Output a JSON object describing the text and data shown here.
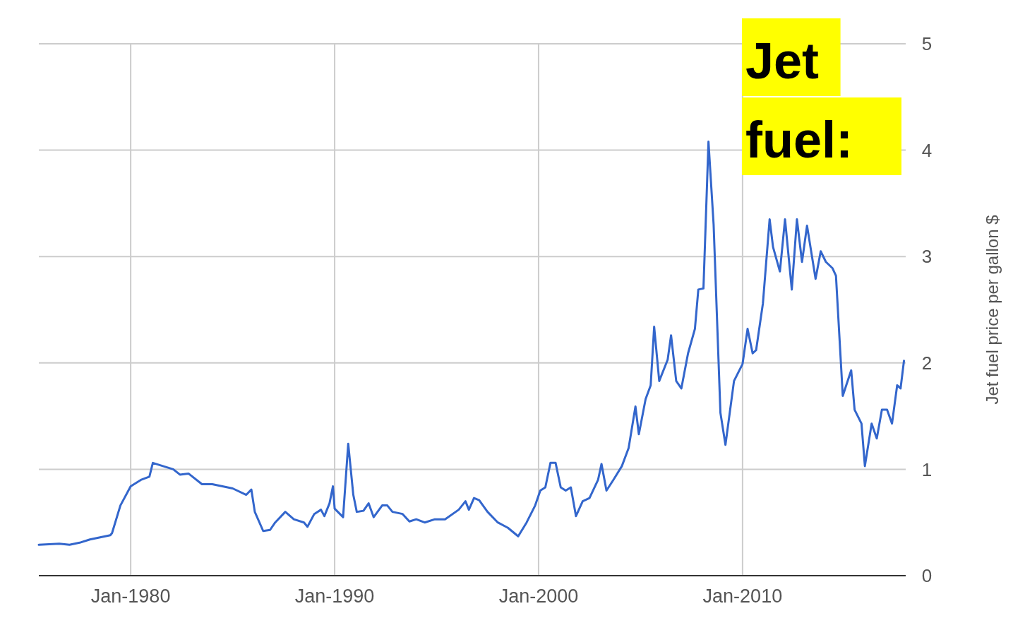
{
  "chart_data": {
    "type": "line",
    "ylabel": "Jet fuel price per gallon $",
    "annotations": [
      "Jet fuel:"
    ],
    "x": [
      "1975-07",
      "1976-07",
      "1977-01",
      "1977-07",
      "1978-01",
      "1979-01",
      "1979-02",
      "1979-07",
      "1980-01",
      "1980-07",
      "1980-12",
      "1981-02",
      "1981-08",
      "1982-02",
      "1982-06",
      "1982-11",
      "1983-07",
      "1984-01",
      "1985-01",
      "1985-09",
      "1985-12",
      "1986-02",
      "1986-07",
      "1986-11",
      "1987-02",
      "1987-08",
      "1988-01",
      "1988-07",
      "1988-09",
      "1989-01",
      "1989-05",
      "1989-07",
      "1989-10",
      "1989-12",
      "1990-01",
      "1990-06",
      "1990-09",
      "1990-12",
      "1991-02",
      "1991-06",
      "1991-09",
      "1991-12",
      "1992-05",
      "1992-08",
      "1992-11",
      "1993-05",
      "1993-09",
      "1994-01",
      "1994-06",
      "1994-12",
      "1995-06",
      "1996-02",
      "1996-06",
      "1996-08",
      "1996-11",
      "1997-02",
      "1997-07",
      "1998-01",
      "1998-07",
      "1999-01",
      "1999-06",
      "1999-11",
      "2000-02",
      "2000-05",
      "2000-08",
      "2000-11",
      "2001-02",
      "2001-05",
      "2001-08",
      "2001-11",
      "2002-03",
      "2002-07",
      "2002-12",
      "2003-02",
      "2003-05",
      "2003-09",
      "2004-02",
      "2004-06",
      "2004-10",
      "2004-12",
      "2005-04",
      "2005-07",
      "2005-09",
      "2005-12",
      "2006-05",
      "2006-07",
      "2006-10",
      "2007-01",
      "2007-05",
      "2007-09",
      "2007-11",
      "2008-02",
      "2008-05",
      "2008-08",
      "2008-12",
      "2009-03",
      "2009-08",
      "2010-01",
      "2010-04",
      "2010-07",
      "2010-09",
      "2011-01",
      "2011-05",
      "2011-07",
      "2011-11",
      "2012-02",
      "2012-06",
      "2012-09",
      "2012-12",
      "2013-03",
      "2013-08",
      "2013-11",
      "2014-02",
      "2014-06",
      "2014-08",
      "2014-12",
      "2015-02",
      "2015-05",
      "2015-07",
      "2015-11",
      "2016-01",
      "2016-05",
      "2016-08",
      "2016-11",
      "2017-02",
      "2017-05",
      "2017-08",
      "2017-10",
      "2017-12"
    ],
    "series": [
      {
        "color": "#3366cc",
        "values": [
          0.29,
          0.3,
          0.29,
          0.31,
          0.34,
          0.38,
          0.4,
          0.66,
          0.84,
          0.9,
          0.93,
          1.06,
          1.03,
          1.0,
          0.95,
          0.96,
          0.86,
          0.86,
          0.82,
          0.76,
          0.81,
          0.6,
          0.42,
          0.43,
          0.5,
          0.6,
          0.53,
          0.5,
          0.46,
          0.58,
          0.62,
          0.56,
          0.68,
          0.84,
          0.63,
          0.55,
          1.24,
          0.76,
          0.6,
          0.61,
          0.68,
          0.55,
          0.66,
          0.66,
          0.6,
          0.58,
          0.51,
          0.53,
          0.5,
          0.53,
          0.53,
          0.62,
          0.7,
          0.62,
          0.73,
          0.71,
          0.6,
          0.5,
          0.45,
          0.37,
          0.5,
          0.66,
          0.8,
          0.83,
          1.06,
          1.06,
          0.83,
          0.8,
          0.83,
          0.56,
          0.7,
          0.73,
          0.9,
          1.05,
          0.8,
          0.9,
          1.03,
          1.2,
          1.59,
          1.33,
          1.66,
          1.79,
          2.34,
          1.83,
          2.03,
          2.26,
          1.83,
          1.76,
          2.09,
          2.32,
          2.69,
          2.7,
          4.08,
          3.3,
          1.53,
          1.23,
          1.83,
          1.99,
          2.32,
          2.09,
          2.12,
          2.56,
          3.35,
          3.09,
          2.86,
          3.35,
          2.69,
          3.35,
          2.95,
          3.29,
          2.79,
          3.05,
          2.95,
          2.89,
          2.82,
          1.69,
          1.79,
          1.93,
          1.56,
          1.43,
          1.03,
          1.43,
          1.29,
          1.56,
          1.56,
          1.43,
          1.79,
          1.76,
          2.02
        ]
      }
    ],
    "xlim": [
      "1975-07",
      "2018-01"
    ],
    "xticks": [
      {
        "value": "1980-01",
        "label": "Jan-1980"
      },
      {
        "value": "1990-01",
        "label": "Jan-1990"
      },
      {
        "value": "2000-01",
        "label": "Jan-2000"
      },
      {
        "value": "2010-01",
        "label": "Jan-2010"
      }
    ],
    "ylim": [
      0,
      5
    ],
    "yticks": [
      0,
      1,
      2,
      3,
      4,
      5
    ],
    "grid": true,
    "marker": "none",
    "line_style": "solid"
  }
}
